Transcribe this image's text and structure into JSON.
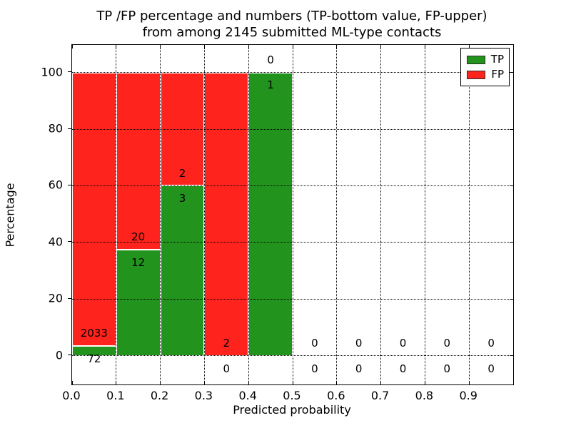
{
  "figure": {
    "title_line1": "TP /FP percentage and numbers (TP-bottom value, FP-upper)",
    "title_line2": "from among 2145 submitted ML-type contacts",
    "xlabel": "Predicted probability",
    "ylabel": "Percentage"
  },
  "legend": {
    "position": "upper right",
    "items": [
      {
        "label": "TP",
        "color": "#22941e"
      },
      {
        "label": "FP",
        "color": "#fe231c"
      }
    ]
  },
  "chart_data": {
    "type": "bar",
    "stacked": true,
    "normalized": "each bin scaled to 100%",
    "title": "TP /FP percentage and numbers (TP-bottom value, FP-upper) from among 2145 submitted ML-type contacts",
    "xlabel": "Predicted probability",
    "ylabel": "Percentage",
    "total_contacts": 2145,
    "grid": "dotted",
    "legend_position": "upper right",
    "xlim": [
      0.0,
      1.0
    ],
    "ylim": [
      -10.1,
      109.7
    ],
    "x_tick_labels": [
      "0.0",
      "0.1",
      "0.2",
      "0.3",
      "0.4",
      "0.5",
      "0.6",
      "0.7",
      "0.8",
      "0.9"
    ],
    "x_tick_values": [
      0.0,
      0.1,
      0.2,
      0.3,
      0.4,
      0.5,
      0.6,
      0.7,
      0.8,
      0.9
    ],
    "y_ticks": [
      0,
      20,
      40,
      60,
      80,
      100
    ],
    "series": [
      {
        "name": "TP",
        "color": "#22941e",
        "stack_order": "bottom"
      },
      {
        "name": "FP",
        "color": "#fe231c",
        "stack_order": "top"
      }
    ],
    "bins": [
      {
        "x0": 0.0,
        "x1": 0.1,
        "tp": 72,
        "fp": 2033,
        "tp_pct": 3.42,
        "fp_pct": 96.58
      },
      {
        "x0": 0.1,
        "x1": 0.2,
        "tp": 12,
        "fp": 20,
        "tp_pct": 37.5,
        "fp_pct": 62.5
      },
      {
        "x0": 0.2,
        "x1": 0.3,
        "tp": 3,
        "fp": 2,
        "tp_pct": 60.0,
        "fp_pct": 40.0
      },
      {
        "x0": 0.3,
        "x1": 0.4,
        "tp": 0,
        "fp": 2,
        "tp_pct": 0.0,
        "fp_pct": 100.0
      },
      {
        "x0": 0.4,
        "x1": 0.5,
        "tp": 1,
        "fp": 0,
        "tp_pct": 100.0,
        "fp_pct": 0.0
      },
      {
        "x0": 0.5,
        "x1": 0.6,
        "tp": 0,
        "fp": 0,
        "tp_pct": 0.0,
        "fp_pct": 0.0
      },
      {
        "x0": 0.6,
        "x1": 0.7,
        "tp": 0,
        "fp": 0,
        "tp_pct": 0.0,
        "fp_pct": 0.0
      },
      {
        "x0": 0.7,
        "x1": 0.8,
        "tp": 0,
        "fp": 0,
        "tp_pct": 0.0,
        "fp_pct": 0.0
      },
      {
        "x0": 0.8,
        "x1": 0.9,
        "tp": 0,
        "fp": 0,
        "tp_pct": 0.0,
        "fp_pct": 0.0
      },
      {
        "x0": 0.9,
        "x1": 1.0,
        "tp": 0,
        "fp": 0,
        "tp_pct": 0.0,
        "fp_pct": 0.0
      }
    ],
    "bar_label_offset_pct": 4.5
  }
}
